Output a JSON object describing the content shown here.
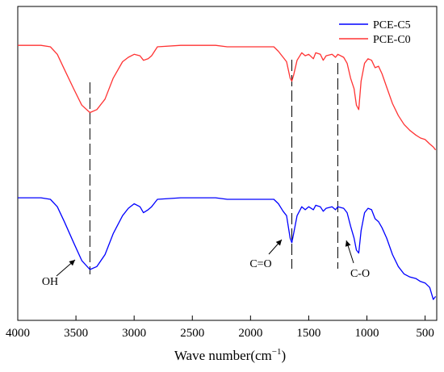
{
  "chart_data": {
    "type": "line",
    "title": "",
    "xlabel_main": "Wave number(cm",
    "xlabel_sup": "−1",
    "xlabel_tail": ")",
    "ylabel": "",
    "xlim": [
      4000,
      400
    ],
    "x_reversed": true,
    "y_ticks_shown": false,
    "grid": false,
    "legend_position": "top-right",
    "x_ticks": [
      4000,
      3500,
      3000,
      2500,
      2000,
      1500,
      1000,
      500
    ],
    "series": [
      {
        "name": "PCE-C5",
        "color": "#0000ff",
        "points": [
          [
            4000,
            0.82
          ],
          [
            3800,
            0.82
          ],
          [
            3720,
            0.81
          ],
          [
            3660,
            0.76
          ],
          [
            3600,
            0.66
          ],
          [
            3520,
            0.52
          ],
          [
            3450,
            0.4
          ],
          [
            3380,
            0.34
          ],
          [
            3320,
            0.36
          ],
          [
            3250,
            0.44
          ],
          [
            3180,
            0.58
          ],
          [
            3100,
            0.7
          ],
          [
            3050,
            0.75
          ],
          [
            3000,
            0.78
          ],
          [
            2950,
            0.76
          ],
          [
            2920,
            0.72
          ],
          [
            2880,
            0.74
          ],
          [
            2850,
            0.76
          ],
          [
            2800,
            0.81
          ],
          [
            2600,
            0.82
          ],
          [
            2300,
            0.82
          ],
          [
            2200,
            0.81
          ],
          [
            2100,
            0.81
          ],
          [
            1900,
            0.81
          ],
          [
            1800,
            0.81
          ],
          [
            1760,
            0.78
          ],
          [
            1720,
            0.73
          ],
          [
            1690,
            0.7
          ],
          [
            1660,
            0.55
          ],
          [
            1645,
            0.52
          ],
          [
            1630,
            0.58
          ],
          [
            1600,
            0.7
          ],
          [
            1560,
            0.76
          ],
          [
            1530,
            0.74
          ],
          [
            1500,
            0.76
          ],
          [
            1460,
            0.74
          ],
          [
            1440,
            0.77
          ],
          [
            1400,
            0.76
          ],
          [
            1375,
            0.73
          ],
          [
            1350,
            0.75
          ],
          [
            1300,
            0.76
          ],
          [
            1270,
            0.74
          ],
          [
            1250,
            0.76
          ],
          [
            1200,
            0.75
          ],
          [
            1170,
            0.72
          ],
          [
            1140,
            0.63
          ],
          [
            1110,
            0.55
          ],
          [
            1090,
            0.47
          ],
          [
            1070,
            0.45
          ],
          [
            1050,
            0.6
          ],
          [
            1020,
            0.72
          ],
          [
            990,
            0.75
          ],
          [
            960,
            0.74
          ],
          [
            930,
            0.68
          ],
          [
            900,
            0.66
          ],
          [
            870,
            0.62
          ],
          [
            830,
            0.55
          ],
          [
            780,
            0.44
          ],
          [
            730,
            0.36
          ],
          [
            680,
            0.31
          ],
          [
            630,
            0.29
          ],
          [
            580,
            0.28
          ],
          [
            540,
            0.26
          ],
          [
            500,
            0.25
          ],
          [
            460,
            0.22
          ],
          [
            430,
            0.14
          ],
          [
            410,
            0.16
          ]
        ]
      },
      {
        "name": "PCE-C0",
        "color": "#ff3333",
        "points": [
          [
            4000,
            1.84
          ],
          [
            3800,
            1.84
          ],
          [
            3720,
            1.83
          ],
          [
            3660,
            1.78
          ],
          [
            3600,
            1.68
          ],
          [
            3520,
            1.55
          ],
          [
            3450,
            1.44
          ],
          [
            3380,
            1.39
          ],
          [
            3320,
            1.41
          ],
          [
            3250,
            1.48
          ],
          [
            3180,
            1.62
          ],
          [
            3100,
            1.73
          ],
          [
            3050,
            1.76
          ],
          [
            3000,
            1.78
          ],
          [
            2950,
            1.77
          ],
          [
            2920,
            1.74
          ],
          [
            2880,
            1.75
          ],
          [
            2850,
            1.77
          ],
          [
            2800,
            1.83
          ],
          [
            2600,
            1.84
          ],
          [
            2300,
            1.84
          ],
          [
            2200,
            1.83
          ],
          [
            2100,
            1.83
          ],
          [
            1900,
            1.83
          ],
          [
            1800,
            1.83
          ],
          [
            1760,
            1.8
          ],
          [
            1720,
            1.76
          ],
          [
            1690,
            1.73
          ],
          [
            1660,
            1.62
          ],
          [
            1645,
            1.6
          ],
          [
            1630,
            1.64
          ],
          [
            1600,
            1.74
          ],
          [
            1560,
            1.79
          ],
          [
            1530,
            1.77
          ],
          [
            1500,
            1.78
          ],
          [
            1460,
            1.75
          ],
          [
            1440,
            1.79
          ],
          [
            1400,
            1.78
          ],
          [
            1375,
            1.74
          ],
          [
            1350,
            1.77
          ],
          [
            1300,
            1.78
          ],
          [
            1270,
            1.76
          ],
          [
            1250,
            1.78
          ],
          [
            1200,
            1.76
          ],
          [
            1170,
            1.72
          ],
          [
            1140,
            1.62
          ],
          [
            1110,
            1.55
          ],
          [
            1090,
            1.44
          ],
          [
            1070,
            1.41
          ],
          [
            1050,
            1.6
          ],
          [
            1020,
            1.72
          ],
          [
            990,
            1.75
          ],
          [
            960,
            1.74
          ],
          [
            930,
            1.69
          ],
          [
            900,
            1.7
          ],
          [
            870,
            1.65
          ],
          [
            830,
            1.56
          ],
          [
            780,
            1.45
          ],
          [
            730,
            1.37
          ],
          [
            680,
            1.31
          ],
          [
            630,
            1.27
          ],
          [
            580,
            1.24
          ],
          [
            540,
            1.22
          ],
          [
            500,
            1.21
          ],
          [
            460,
            1.18
          ],
          [
            430,
            1.16
          ],
          [
            410,
            1.14
          ]
        ]
      }
    ],
    "ylim": [
      0,
      2.1
    ],
    "reference_lines": [
      3380,
      1645,
      1250
    ],
    "annotations": [
      {
        "label": "OH",
        "x": 3380
      },
      {
        "label": "C=O",
        "x": 1645
      },
      {
        "label": "C-O",
        "x": 1090
      }
    ]
  }
}
